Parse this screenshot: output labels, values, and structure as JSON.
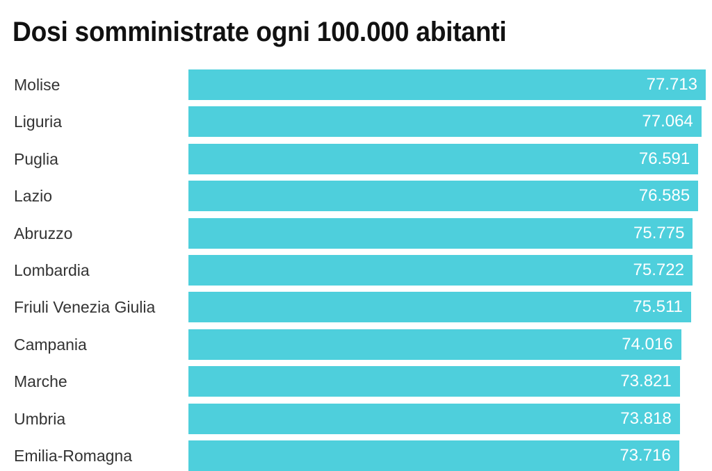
{
  "title": "Dosi somministrate ogni 100.000 abitanti",
  "colors": {
    "bar": "#4ecfdc",
    "value_text": "#ffffff",
    "label_text": "#333333",
    "title_text": "#111111"
  },
  "rows": [
    {
      "label": "Molise",
      "value_label": "77.713",
      "value": 77713
    },
    {
      "label": "Liguria",
      "value_label": "77.064",
      "value": 77064
    },
    {
      "label": "Puglia",
      "value_label": "76.591",
      "value": 76591
    },
    {
      "label": "Lazio",
      "value_label": "76.585",
      "value": 76585
    },
    {
      "label": "Abruzzo",
      "value_label": "75.775",
      "value": 75775
    },
    {
      "label": "Lombardia",
      "value_label": "75.722",
      "value": 75722
    },
    {
      "label": "Friuli Venezia Giulia",
      "value_label": "75.511",
      "value": 75511
    },
    {
      "label": "Campania",
      "value_label": "74.016",
      "value": 74016
    },
    {
      "label": "Marche",
      "value_label": "73.821",
      "value": 73821
    },
    {
      "label": "Umbria",
      "value_label": "73.818",
      "value": 73818
    },
    {
      "label": "Emilia-Romagna",
      "value_label": "73.716",
      "value": 73716
    }
  ],
  "chart_data": {
    "type": "bar",
    "orientation": "horizontal",
    "title": "Dosi somministrate ogni 100.000 abitanti",
    "xlabel": "",
    "ylabel": "",
    "categories": [
      "Molise",
      "Liguria",
      "Puglia",
      "Lazio",
      "Abruzzo",
      "Lombardia",
      "Friuli Venezia Giulia",
      "Campania",
      "Marche",
      "Umbria",
      "Emilia-Romagna"
    ],
    "values": [
      77713,
      77064,
      76591,
      76585,
      75775,
      75722,
      75511,
      74016,
      73821,
      73818,
      73716
    ],
    "data_labels": true,
    "grid": false,
    "legend": null,
    "xlim": [
      0,
      77713
    ]
  }
}
